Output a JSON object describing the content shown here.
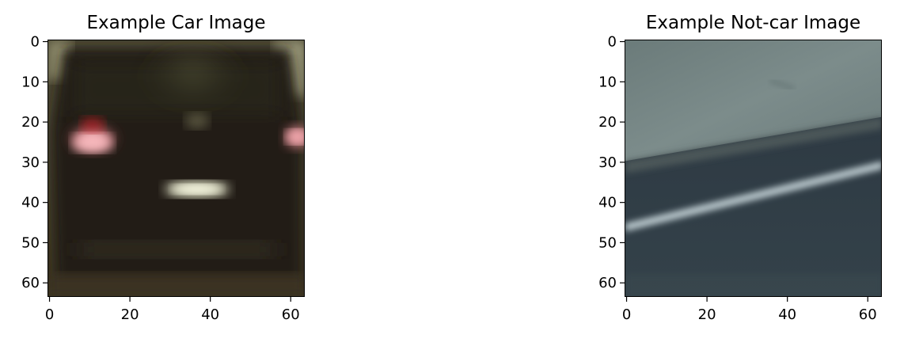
{
  "figure": {
    "panels": [
      {
        "title": "Example Car Image",
        "image_kind": "car-rear-photo",
        "xticks": [
          "0",
          "20",
          "40",
          "60"
        ],
        "yticks": [
          "0",
          "10",
          "20",
          "30",
          "40",
          "50",
          "60"
        ],
        "xtick_values": [
          0,
          20,
          40,
          60
        ],
        "ytick_values": [
          0,
          10,
          20,
          30,
          40,
          50,
          60
        ],
        "axis_extent": [
          -0.5,
          63.5
        ]
      },
      {
        "title": "Example Not-car Image",
        "image_kind": "road-surface-photo",
        "xticks": [
          "0",
          "20",
          "40",
          "60"
        ],
        "yticks": [
          "0",
          "10",
          "20",
          "30",
          "40",
          "50",
          "60"
        ],
        "xtick_values": [
          0,
          20,
          40,
          60
        ],
        "ytick_values": [
          0,
          10,
          20,
          30,
          40,
          50,
          60
        ],
        "axis_extent": [
          -0.5,
          63.5
        ]
      }
    ],
    "colors": {
      "car_body": "#1f1b12",
      "tail_light": "#f2a0a6",
      "plate": "#e8ead0",
      "road_upper": "#6f7f7e",
      "road_lower": "#2f3b45",
      "lane_line": "#c7d3d8"
    }
  }
}
